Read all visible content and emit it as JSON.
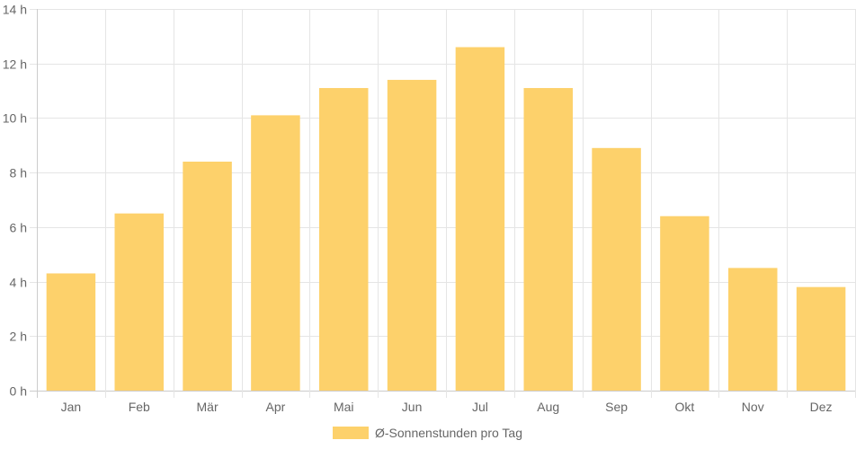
{
  "chart_data": {
    "type": "bar",
    "categories": [
      "Jan",
      "Feb",
      "Mär",
      "Apr",
      "Mai",
      "Jun",
      "Jul",
      "Aug",
      "Sep",
      "Okt",
      "Nov",
      "Dez"
    ],
    "series": [
      {
        "name": "Ø-Sonnenstunden pro Tag",
        "values": [
          4.3,
          6.5,
          8.4,
          10.1,
          11.1,
          11.4,
          12.6,
          11.1,
          8.9,
          6.4,
          4.5,
          3.8
        ]
      }
    ],
    "title": "",
    "xlabel": "",
    "ylabel": "",
    "ylim": [
      0,
      14
    ],
    "y_ticks": [
      "0 h",
      "2 h",
      "4 h",
      "6 h",
      "8 h",
      "10 h",
      "12 h",
      "14 h"
    ],
    "grid": true,
    "legend_position": "bottom"
  },
  "colors": {
    "bar_fill": "#fdd16b",
    "grid": "#e5e5e5",
    "tick_text": "#666666"
  }
}
